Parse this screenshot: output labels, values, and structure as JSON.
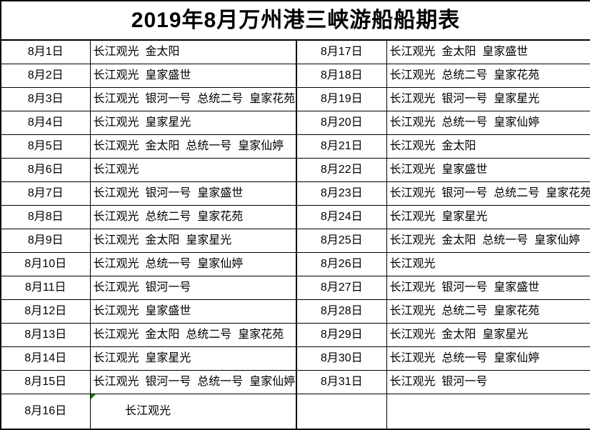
{
  "title": "2019年8月万州港三峡游船船期表",
  "colors": {
    "border": "#000000",
    "background": "#ffffff",
    "text": "#000000",
    "flag_green": "#008000"
  },
  "cell_flag": {
    "icon": "green-corner-triangle",
    "location": "8月16日 ships cell top-left"
  },
  "rows": [
    {
      "left_date": "8月1日",
      "left_ships": "长江观光  金太阳",
      "right_date": "8月17日",
      "right_ships": "长江观光  金太阳  皇家盛世"
    },
    {
      "left_date": "8月2日",
      "left_ships": "长江观光  皇家盛世",
      "right_date": "8月18日",
      "right_ships": "长江观光  总统二号  皇家花苑"
    },
    {
      "left_date": "8月3日",
      "left_ships": "长江观光  银河一号  总统二号  皇家花苑",
      "right_date": "8月19日",
      "right_ships": "长江观光  银河一号  皇家星光"
    },
    {
      "left_date": "8月4日",
      "left_ships": "长江观光  皇家星光",
      "right_date": "8月20日",
      "right_ships": "长江观光  总统一号  皇家仙婷"
    },
    {
      "left_date": "8月5日",
      "left_ships": "长江观光  金太阳  总统一号  皇家仙婷",
      "right_date": "8月21日",
      "right_ships": "长江观光  金太阳"
    },
    {
      "left_date": "8月6日",
      "left_ships": "长江观光",
      "right_date": "8月22日",
      "right_ships": "长江观光  皇家盛世"
    },
    {
      "left_date": "8月7日",
      "left_ships": "长江观光  银河一号  皇家盛世",
      "right_date": "8月23日",
      "right_ships": "长江观光  银河一号  总统二号  皇家花苑"
    },
    {
      "left_date": "8月8日",
      "left_ships": "长江观光  总统二号  皇家花苑",
      "right_date": "8月24日",
      "right_ships": "长江观光  皇家星光"
    },
    {
      "left_date": "8月9日",
      "left_ships": "长江观光  金太阳  皇家星光",
      "right_date": "8月25日",
      "right_ships": "长江观光  金太阳  总统一号  皇家仙婷"
    },
    {
      "left_date": "8月10日",
      "left_ships": "长江观光  总统一号  皇家仙婷",
      "right_date": "8月26日",
      "right_ships": "长江观光"
    },
    {
      "left_date": "8月11日",
      "left_ships": "长江观光  银河一号",
      "right_date": "8月27日",
      "right_ships": "长江观光  银河一号  皇家盛世"
    },
    {
      "left_date": "8月12日",
      "left_ships": "长江观光  皇家盛世",
      "right_date": "8月28日",
      "right_ships": "长江观光  总统二号  皇家花苑"
    },
    {
      "left_date": "8月13日",
      "left_ships": "长江观光  金太阳  总统二号  皇家花苑",
      "right_date": "8月29日",
      "right_ships": "长江观光  金太阳  皇家星光"
    },
    {
      "left_date": "8月14日",
      "left_ships": "长江观光  皇家星光",
      "right_date": "8月30日",
      "right_ships": "长江观光  总统一号  皇家仙婷"
    },
    {
      "left_date": "8月15日",
      "left_ships": "长江观光  银河一号  总统一号  皇家仙婷",
      "right_date": "8月31日",
      "right_ships": "长江观光  银河一号"
    },
    {
      "left_date": "8月16日",
      "left_ships": "长江观光",
      "right_date": "",
      "right_ships": ""
    }
  ]
}
